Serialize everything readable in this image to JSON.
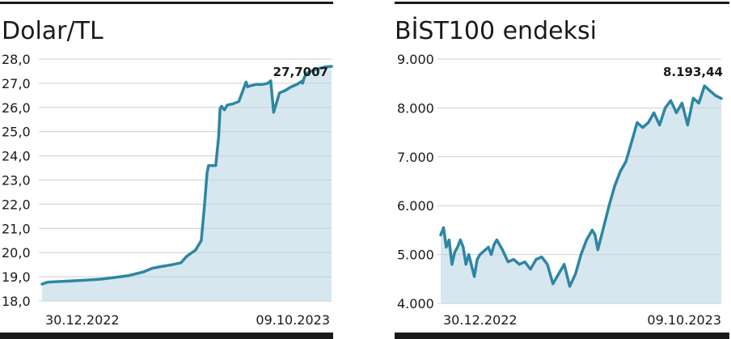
{
  "chart_data": [
    {
      "type": "area",
      "title": "Dolar/TL",
      "ylim": [
        18.0,
        28.0
      ],
      "yticks": [
        "28,0",
        "27,0",
        "26,0",
        "25,0",
        "24,0",
        "23,0",
        "22,0",
        "21,0",
        "20,0",
        "19,0",
        "18,0"
      ],
      "x_labels": [
        "30.12.2022",
        "09.10.2023"
      ],
      "last_value_label": "27,7007",
      "grid": true,
      "colors": {
        "line": "#2e86a2",
        "fill": "#d7e7f0",
        "grid": "#c8d0d6"
      },
      "series": [
        {
          "x": [
            0,
            0.02,
            0.05,
            0.1,
            0.15,
            0.2,
            0.25,
            0.3,
            0.35,
            0.38,
            0.41,
            0.45,
            0.48,
            0.5,
            0.53,
            0.55,
            0.56,
            0.57,
            0.575,
            0.58,
            0.6,
            0.61,
            0.615,
            0.62,
            0.63,
            0.64,
            0.66,
            0.68,
            0.7,
            0.705,
            0.71,
            0.72,
            0.74,
            0.76,
            0.78,
            0.79,
            0.8,
            0.82,
            0.84,
            0.86,
            0.88,
            0.9,
            0.9,
            0.905,
            0.91,
            0.92,
            0.94,
            0.96,
            0.98,
            1.0
          ],
          "y": [
            18.7,
            18.78,
            18.8,
            18.83,
            18.86,
            18.9,
            18.97,
            19.05,
            19.2,
            19.35,
            19.42,
            19.5,
            19.58,
            19.85,
            20.1,
            20.5,
            21.8,
            23.3,
            23.6,
            23.6,
            23.6,
            24.8,
            25.95,
            26.05,
            25.9,
            26.1,
            26.15,
            26.25,
            26.9,
            27.05,
            26.85,
            26.9,
            26.95,
            26.95,
            27.0,
            27.1,
            25.8,
            26.6,
            26.7,
            26.85,
            26.95,
            27.1,
            27.0,
            27.2,
            27.35,
            27.45,
            27.55,
            27.62,
            27.68,
            27.7
          ]
        }
      ]
    },
    {
      "type": "area",
      "title": "BİST100 endeksi",
      "ylim": [
        4000,
        9000
      ],
      "yticks": [
        "9.000",
        "8.000",
        "7.000",
        "6.000",
        "5.000",
        "4.000"
      ],
      "x_labels": [
        "30.12.2022",
        "09.10.2023"
      ],
      "last_value_label": "8.193,44",
      "grid": true,
      "colors": {
        "line": "#2e86a2",
        "fill": "#d7e7f0",
        "grid": "#c8d0d6"
      },
      "series": [
        {
          "x": [
            0,
            0.01,
            0.02,
            0.03,
            0.04,
            0.05,
            0.06,
            0.07,
            0.08,
            0.09,
            0.1,
            0.12,
            0.13,
            0.14,
            0.15,
            0.16,
            0.17,
            0.18,
            0.19,
            0.2,
            0.22,
            0.24,
            0.26,
            0.28,
            0.3,
            0.32,
            0.34,
            0.36,
            0.38,
            0.4,
            0.42,
            0.44,
            0.46,
            0.48,
            0.5,
            0.52,
            0.54,
            0.55,
            0.56,
            0.58,
            0.6,
            0.62,
            0.64,
            0.66,
            0.68,
            0.7,
            0.72,
            0.74,
            0.76,
            0.78,
            0.8,
            0.82,
            0.84,
            0.86,
            0.88,
            0.9,
            0.92,
            0.94,
            0.96,
            0.98,
            1.0
          ],
          "y": [
            5400,
            5550,
            5150,
            5300,
            4800,
            5050,
            5150,
            5300,
            5150,
            4800,
            5000,
            4550,
            4900,
            5000,
            5050,
            5100,
            5150,
            5000,
            5200,
            5300,
            5100,
            4850,
            4900,
            4800,
            4850,
            4700,
            4900,
            4950,
            4800,
            4400,
            4600,
            4800,
            4350,
            4600,
            5000,
            5300,
            5500,
            5400,
            5100,
            5550,
            6000,
            6400,
            6700,
            6900,
            7300,
            7700,
            7600,
            7700,
            7900,
            7650,
            8000,
            8150,
            7900,
            8100,
            7650,
            8200,
            8100,
            8450,
            8350,
            8250,
            8193
          ]
        }
      ]
    }
  ]
}
